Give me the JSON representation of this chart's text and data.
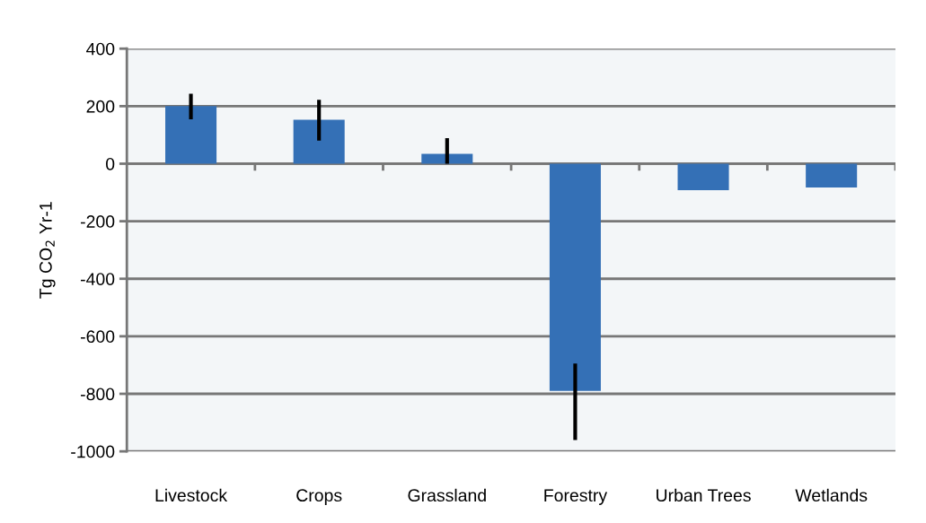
{
  "chart_data": {
    "type": "bar",
    "ylabel": "Tg CO$_{2}$ Yr-1",
    "categories": [
      "Livestock",
      "Crops",
      "Grassland",
      "Forestry",
      "Urban Trees",
      "Wetlands"
    ],
    "values": [
      200,
      153,
      34,
      -790,
      -92,
      -83
    ],
    "errors": [
      [
        154,
        243
      ],
      [
        80,
        222
      ],
      [
        0,
        89
      ],
      [
        -961,
        -695
      ],
      null,
      null
    ],
    "color": "#3470b6",
    "ylim": [
      -1000,
      400
    ],
    "yticks": [
      -1000,
      -800,
      -600,
      -400,
      -200,
      0,
      200,
      400
    ],
    "grid": "y",
    "legend": false
  }
}
